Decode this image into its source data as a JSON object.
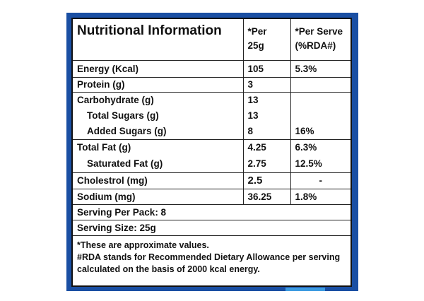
{
  "header": {
    "title": "Nutritional Information",
    "col_per": "*Per 25g",
    "col_serve_line1": "*Per Serve",
    "col_serve_line2": "(%RDA#)"
  },
  "rows": [
    {
      "name": "Energy (Kcal)",
      "per": "105",
      "serve": "5.3%"
    },
    {
      "name": "Protein (g)",
      "per": "3",
      "serve": ""
    },
    {
      "name": "Carbohydrate (g)",
      "per": "13",
      "serve": ""
    },
    {
      "name": "Total Sugars (g)",
      "per": "13",
      "serve": ""
    },
    {
      "name": "Added Sugars (g)",
      "per": "8",
      "serve": "16%"
    },
    {
      "name": "Total Fat (g)",
      "per": "4.25",
      "serve": "6.3%"
    },
    {
      "name": "Saturated Fat (g)",
      "per": "2.75",
      "serve": "12.5%"
    },
    {
      "name": "Cholestrol (mg)",
      "per": "2.5",
      "serve": "-"
    },
    {
      "name": "Sodium (mg)",
      "per": "36.25",
      "serve": "1.8%"
    }
  ],
  "serving_per_pack": "Serving Per Pack: 8",
  "serving_size": "Serving Size: 25g",
  "notes": [
    "*These are approximate values.",
    "#RDA stands for Recommended Dietary Allowance per serving",
    "calculated on the basis of 2000 kcal energy."
  ],
  "colors": {
    "frame": "#1a4fa3",
    "frame_accent": "#3d9be0",
    "text": "#111111"
  }
}
